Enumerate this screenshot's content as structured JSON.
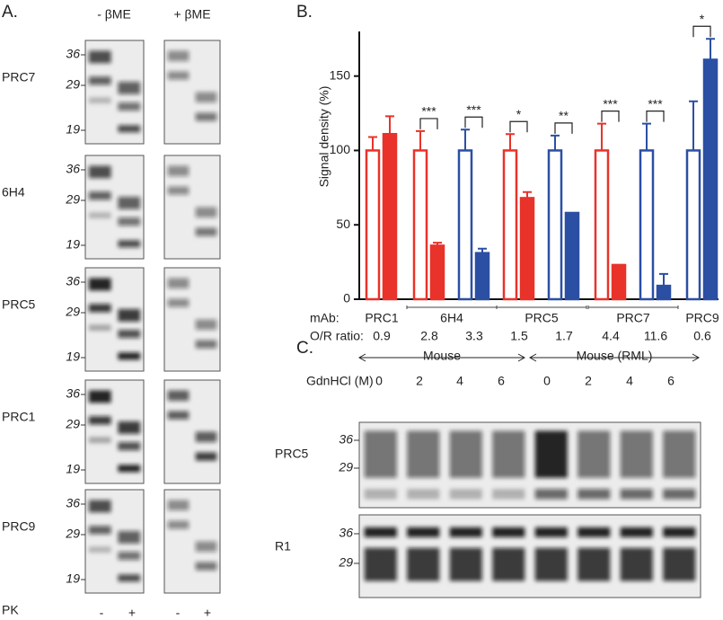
{
  "panel_a": {
    "label": "A.",
    "columns": [
      "- βME",
      "+ βME"
    ],
    "markers": [
      36,
      29,
      19
    ],
    "rows": [
      "PRC7",
      "6H4",
      "PRC5",
      "PRC1",
      "PRC9"
    ],
    "pk_label": "PK",
    "pk_lanes": [
      "-",
      "+",
      "-",
      "+"
    ]
  },
  "chart_data": {
    "type": "bar",
    "panel_label": "B.",
    "ylabel": "Signal density (%)",
    "ylim": [
      0,
      180
    ],
    "yticks": [
      0,
      50,
      100,
      150
    ],
    "row_labels": [
      "mAb:",
      "O/R ratio:"
    ],
    "groups": [
      {
        "mab": "PRC1",
        "pairs": [
          {
            "ratio": 0.9,
            "color": "#e8322a",
            "values": [
              100,
              111
            ],
            "errors": [
              9,
              12
            ]
          }
        ]
      },
      {
        "mab": "6H4",
        "pairs": [
          {
            "ratio": 2.8,
            "color": "#e8322a",
            "values": [
              100,
              36
            ],
            "errors": [
              13,
              2
            ],
            "stars": "***"
          },
          {
            "ratio": 3.3,
            "color": "#2b4fa3",
            "values": [
              100,
              31
            ],
            "errors": [
              14,
              3
            ],
            "stars": "***"
          }
        ]
      },
      {
        "mab": "PRC5",
        "pairs": [
          {
            "ratio": 1.5,
            "color": "#e8322a",
            "values": [
              100,
              68
            ],
            "errors": [
              11,
              4
            ],
            "stars": "*"
          },
          {
            "ratio": 1.7,
            "color": "#2b4fa3",
            "values": [
              100,
              58
            ],
            "errors": [
              10,
              0
            ],
            "stars": "**"
          }
        ]
      },
      {
        "mab": "PRC7",
        "pairs": [
          {
            "ratio": 4.4,
            "color": "#e8322a",
            "values": [
              100,
              23
            ],
            "errors": [
              18,
              0
            ],
            "stars": "***"
          },
          {
            "ratio": 11.6,
            "color": "#2b4fa3",
            "values": [
              100,
              9
            ],
            "errors": [
              18,
              8
            ],
            "stars": "***"
          }
        ]
      },
      {
        "mab": "PRC9",
        "pairs": [
          {
            "ratio": 0.6,
            "color": "#2b4fa3",
            "values": [
              100,
              161
            ],
            "errors": [
              33,
              14
            ],
            "stars": "*"
          }
        ]
      }
    ]
  },
  "panel_c": {
    "label": "C.",
    "groups": [
      "Mouse",
      "Mouse (RML)"
    ],
    "gdn_label": "GdnHCl (M)",
    "concentrations": [
      0,
      2,
      4,
      6,
      0,
      2,
      4,
      6
    ],
    "rows": [
      {
        "name": "PRC5",
        "markers": [
          36,
          29
        ]
      },
      {
        "name": "R1",
        "markers": [
          36,
          29
        ]
      }
    ]
  }
}
